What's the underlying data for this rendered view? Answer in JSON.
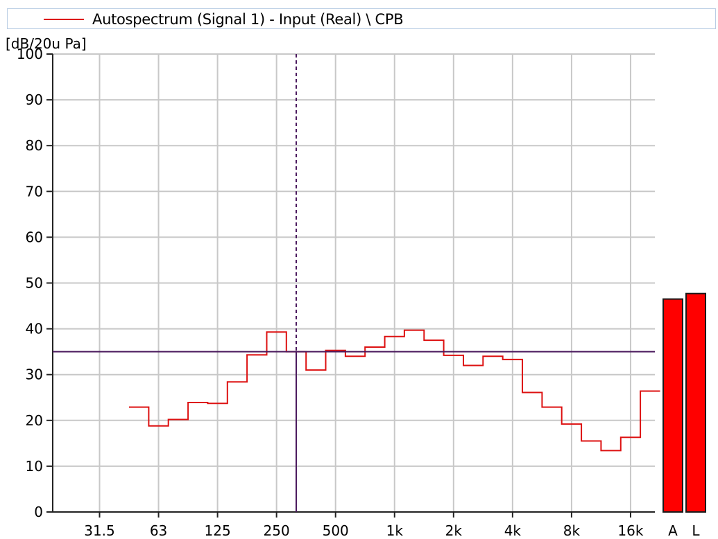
{
  "legend": {
    "label": "Autospectrum (Signal 1) - Input (Real) \\ CPB",
    "line_color": "#dd1111"
  },
  "chart_data": {
    "type": "line",
    "title": "Autospectrum (Signal 1) - Input (Real) \\ CPB",
    "ylabel": "[dB/20u Pa]",
    "xlabel": "",
    "x_scale": "log (1/3-octave bands)",
    "x_ticks": [
      "31.5",
      "63",
      "125",
      "250",
      "500",
      "1k",
      "2k",
      "4k",
      "8k",
      "16k"
    ],
    "ylim": [
      0,
      100
    ],
    "y_ticks": [
      0,
      10,
      20,
      30,
      40,
      50,
      60,
      70,
      80,
      90,
      100
    ],
    "grid": true,
    "series": [
      {
        "name": "Autospectrum (Signal 1) - Input (Real) \\ CPB",
        "color": "#dd1111",
        "style": "step (1/3-octave bands)",
        "x": [
          "50",
          "63",
          "80",
          "100",
          "125",
          "160",
          "200",
          "250",
          "315",
          "400",
          "500",
          "630",
          "800",
          "1k",
          "1.25k",
          "1.6k",
          "2k",
          "2.5k",
          "3.15k",
          "4k",
          "5k",
          "6.3k",
          "8k",
          "10k",
          "12.5k",
          "16k",
          "20k"
        ],
        "values": [
          22.9,
          18.8,
          20.2,
          23.9,
          23.7,
          28.4,
          34.3,
          39.3,
          35.0,
          31.0,
          35.3,
          34.0,
          36.0,
          38.3,
          39.7,
          37.5,
          34.2,
          32.0,
          34.0,
          33.3,
          26.1,
          22.9,
          19.2,
          15.5,
          13.4,
          16.3,
          26.4
        ]
      }
    ],
    "overall_bars": [
      {
        "label": "A",
        "value": 46.5,
        "color": "#ff0000"
      },
      {
        "label": "L",
        "value": 47.7,
        "color": "#ff0000"
      }
    ],
    "cursor": {
      "x_position": "315",
      "y_value": 35.0,
      "color": "#4b1a5e"
    }
  }
}
